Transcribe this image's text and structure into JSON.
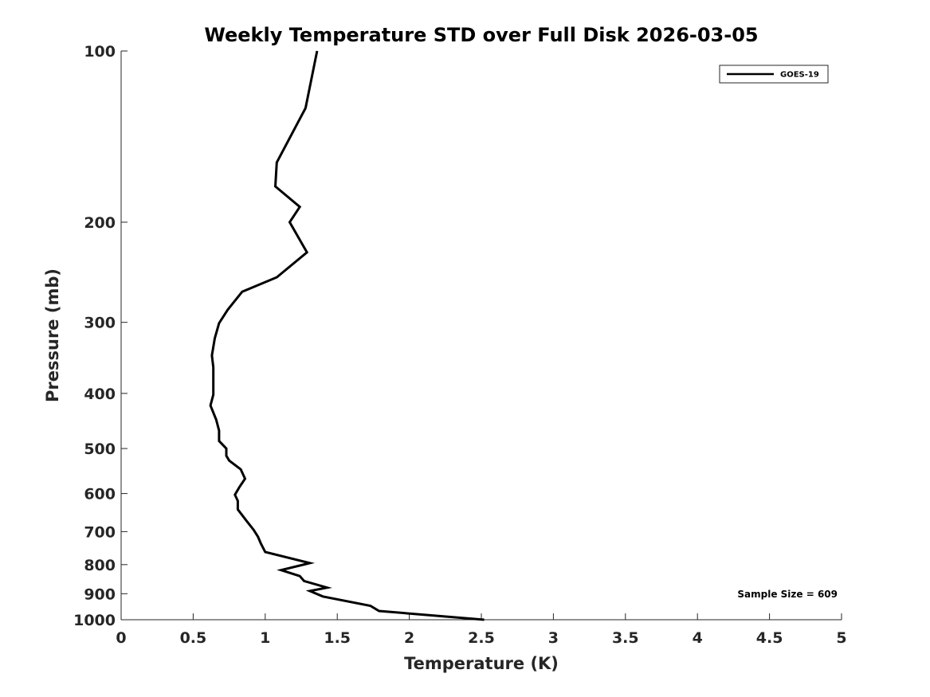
{
  "chart_data": {
    "type": "line",
    "title": "Weekly Temperature STD over Full Disk 2026-03-05",
    "xlabel": "Temperature (K)",
    "ylabel": "Pressure (mb)",
    "xlim": [
      0,
      5
    ],
    "ylim": [
      1000,
      100
    ],
    "y_scale": "log-reversed",
    "x_ticks": [
      0,
      0.5,
      1,
      1.5,
      2,
      2.5,
      3,
      3.5,
      4,
      4.5,
      5
    ],
    "x_tick_labels": [
      "0",
      "0.5",
      "1",
      "1.5",
      "2",
      "2.5",
      "3",
      "3.5",
      "4",
      "4.5",
      "5"
    ],
    "y_ticks": [
      100,
      200,
      300,
      400,
      500,
      600,
      700,
      800,
      900,
      1000
    ],
    "y_tick_labels": [
      "100",
      "200",
      "300",
      "400",
      "500",
      "600",
      "700",
      "800",
      "900",
      "1000"
    ],
    "grid": false,
    "legend_position": "top-right",
    "annotation": "Sample Size = 609",
    "series": [
      {
        "name": "GOES-19",
        "color": "#000000",
        "points": [
          [
            1.36,
            100
          ],
          [
            1.28,
            126
          ],
          [
            1.08,
            157
          ],
          [
            1.07,
            173
          ],
          [
            1.24,
            188
          ],
          [
            1.17,
            200
          ],
          [
            1.29,
            226
          ],
          [
            1.08,
            250
          ],
          [
            0.84,
            265
          ],
          [
            0.74,
            285
          ],
          [
            0.68,
            301
          ],
          [
            0.65,
            320
          ],
          [
            0.63,
            343
          ],
          [
            0.64,
            360
          ],
          [
            0.64,
            380
          ],
          [
            0.64,
            402
          ],
          [
            0.62,
            420
          ],
          [
            0.66,
            445
          ],
          [
            0.68,
            465
          ],
          [
            0.68,
            485
          ],
          [
            0.73,
            500
          ],
          [
            0.73,
            515
          ],
          [
            0.75,
            525
          ],
          [
            0.83,
            544
          ],
          [
            0.86,
            565
          ],
          [
            0.82,
            585
          ],
          [
            0.79,
            603
          ],
          [
            0.81,
            618
          ],
          [
            0.81,
            640
          ],
          [
            0.87,
            670
          ],
          [
            0.92,
            695
          ],
          [
            0.95,
            715
          ],
          [
            0.97,
            735
          ],
          [
            1.0,
            760
          ],
          [
            1.31,
            795
          ],
          [
            1.11,
            818
          ],
          [
            1.24,
            838
          ],
          [
            1.27,
            855
          ],
          [
            1.43,
            878
          ],
          [
            1.31,
            890
          ],
          [
            1.4,
            910
          ],
          [
            1.73,
            945
          ],
          [
            1.79,
            965
          ],
          [
            2.52,
            1000
          ]
        ]
      }
    ]
  }
}
